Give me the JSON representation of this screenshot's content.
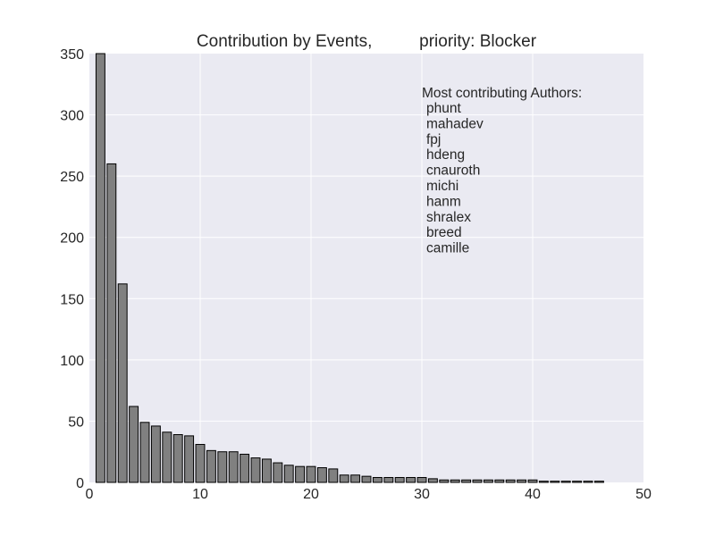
{
  "chart_data": {
    "type": "bar",
    "title": "Contribution by Events,          priority: Blocker",
    "xlabel": "",
    "ylabel": "",
    "xlim": [
      0,
      50
    ],
    "ylim": [
      0,
      350
    ],
    "x_ticks": [
      "0",
      "10",
      "20",
      "30",
      "40",
      "50"
    ],
    "y_ticks": [
      "0",
      "50",
      "100",
      "150",
      "200",
      "250",
      "300",
      "350"
    ],
    "grid": true,
    "bar_color": "#808080",
    "background_color": "#eaeaf2",
    "x": [
      1,
      2,
      3,
      4,
      5,
      6,
      7,
      8,
      9,
      10,
      11,
      12,
      13,
      14,
      15,
      16,
      17,
      18,
      19,
      20,
      21,
      22,
      23,
      24,
      25,
      26,
      27,
      28,
      29,
      30,
      31,
      32,
      33,
      34,
      35,
      36,
      37,
      38,
      39,
      40,
      41,
      42,
      43,
      44,
      45,
      46
    ],
    "values": [
      350,
      260,
      162,
      62,
      49,
      46,
      41,
      39,
      38,
      31,
      26,
      25,
      25,
      23,
      20,
      19,
      16,
      14,
      13,
      13,
      12,
      11,
      6,
      6,
      5,
      4,
      4,
      4,
      4,
      4,
      3,
      2,
      2,
      2,
      2,
      2,
      2,
      2,
      2,
      2,
      1,
      1,
      1,
      1,
      1,
      1
    ],
    "annotation": {
      "heading": "Most contributing Authors:",
      "authors": [
        "phunt",
        "mahadev",
        "fpj",
        "hdeng",
        "cnauroth",
        "michi",
        "hanm",
        "shralex",
        "breed",
        "camille"
      ]
    }
  }
}
